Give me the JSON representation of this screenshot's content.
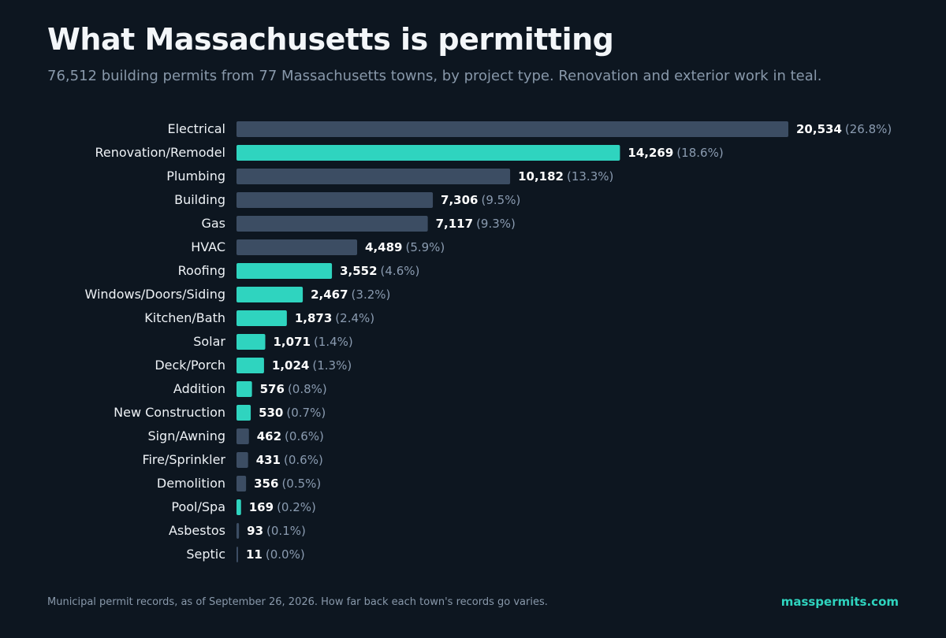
{
  "colors": {
    "background": "#0d1620",
    "highlight": "#2fd4bf",
    "default": "#3c4d63"
  },
  "header": {
    "title": "What Massachusetts is permitting",
    "subtitle": "76,512 building permits from 77 Massachusetts towns, by project type. Renovation and exterior work in teal."
  },
  "chart_data": {
    "type": "bar",
    "orientation": "horizontal",
    "categories": [
      "Electrical",
      "Renovation/Remodel",
      "Plumbing",
      "Building",
      "Gas",
      "HVAC",
      "Roofing",
      "Windows/Doors/Siding",
      "Kitchen/Bath",
      "Solar",
      "Deck/Porch",
      "Addition",
      "New Construction",
      "Sign/Awning",
      "Fire/Sprinkler",
      "Demolition",
      "Pool/Spa",
      "Asbestos",
      "Septic"
    ],
    "values": [
      20534,
      14269,
      10182,
      7306,
      7117,
      4489,
      3552,
      2467,
      1873,
      1071,
      1024,
      576,
      530,
      462,
      431,
      356,
      169,
      93,
      11
    ],
    "value_labels": [
      "20,534",
      "14,269",
      "10,182",
      "7,306",
      "7,117",
      "4,489",
      "3,552",
      "2,467",
      "1,873",
      "1,071",
      "1,024",
      "576",
      "530",
      "462",
      "431",
      "356",
      "169",
      "93",
      "11"
    ],
    "percent_labels": [
      "(26.8%)",
      "(18.6%)",
      "(13.3%)",
      "(9.5%)",
      "(9.3%)",
      "(5.9%)",
      "(4.6%)",
      "(3.2%)",
      "(2.4%)",
      "(1.4%)",
      "(1.3%)",
      "(0.8%)",
      "(0.7%)",
      "(0.6%)",
      "(0.6%)",
      "(0.5%)",
      "(0.2%)",
      "(0.1%)",
      "(0.0%)"
    ],
    "highlighted": [
      false,
      true,
      false,
      false,
      false,
      false,
      true,
      true,
      true,
      true,
      true,
      true,
      true,
      false,
      false,
      false,
      true,
      false,
      false
    ],
    "xlim": [
      0,
      20534
    ],
    "grid": false,
    "legend": "none"
  },
  "footer": {
    "note": "Municipal permit records, as of September 26, 2026. How far back each town's records go varies.",
    "link": "masspermits.com"
  }
}
